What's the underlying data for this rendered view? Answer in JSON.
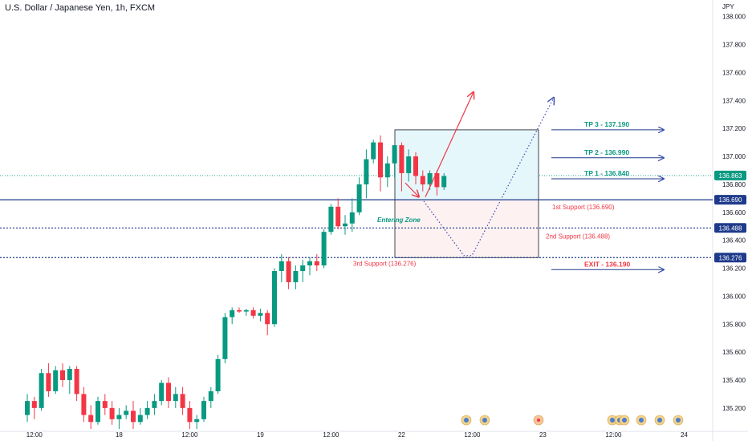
{
  "header": {
    "title": "U.S. Dollar / Japanese Yen, 1h, FXCM"
  },
  "colors": {
    "up": "#089981",
    "down": "#f23645",
    "support_line": "#1e3a8a",
    "tp_text": "#089981",
    "support_text": "#f23645",
    "arrow_blue": "#1e3a8a",
    "arrow_red": "#f23645",
    "dotted_path": "#3b4bb0",
    "zone_top_fill": "#e6f7fb",
    "zone_bottom_fill": "#fdf1f1",
    "axis_text": "#131722"
  },
  "chart_data": {
    "type": "candlestick",
    "symbol": "USDJPY",
    "interval": "1h",
    "y_axis": {
      "unit": "JPY",
      "min": 135.05,
      "max": 138.05,
      "ticks": [
        "138.000",
        "137.800",
        "137.600",
        "137.400",
        "137.200",
        "137.000",
        "136.800",
        "136.600",
        "136.400",
        "136.200",
        "136.000",
        "135.800",
        "135.600",
        "135.400",
        "135.200"
      ]
    },
    "x_axis": {
      "ticks": [
        {
          "label": "12:00",
          "index": 1
        },
        {
          "label": "18",
          "index": 13
        },
        {
          "label": "12:00",
          "index": 23
        },
        {
          "label": "19",
          "index": 33
        },
        {
          "label": "12:00",
          "index": 43
        },
        {
          "label": "22",
          "index": 53
        },
        {
          "label": "12:00",
          "index": 63
        },
        {
          "label": "23",
          "index": 73
        },
        {
          "label": "12:00",
          "index": 83
        },
        {
          "label": "24",
          "index": 93
        }
      ]
    },
    "candles": [
      [
        135.15,
        135.3,
        135.1,
        135.25
      ],
      [
        135.25,
        135.28,
        135.12,
        135.2
      ],
      [
        135.2,
        135.48,
        135.18,
        135.45
      ],
      [
        135.45,
        135.52,
        135.28,
        135.32
      ],
      [
        135.32,
        135.5,
        135.3,
        135.47
      ],
      [
        135.47,
        135.52,
        135.35,
        135.4
      ],
      [
        135.4,
        135.5,
        135.3,
        135.48
      ],
      [
        135.48,
        135.5,
        135.25,
        135.3
      ],
      [
        135.3,
        135.35,
        135.1,
        135.15
      ],
      [
        135.15,
        135.22,
        135.05,
        135.1
      ],
      [
        135.1,
        135.28,
        135.08,
        135.25
      ],
      [
        135.25,
        135.3,
        135.15,
        135.2
      ],
      [
        135.2,
        135.25,
        135.08,
        135.12
      ],
      [
        135.12,
        135.2,
        135.05,
        135.15
      ],
      [
        135.15,
        135.22,
        135.12,
        135.18
      ],
      [
        135.18,
        135.25,
        135.05,
        135.1
      ],
      [
        135.1,
        135.2,
        135.08,
        135.15
      ],
      [
        135.15,
        135.25,
        135.12,
        135.2
      ],
      [
        135.2,
        135.3,
        135.15,
        135.25
      ],
      [
        135.25,
        135.4,
        135.22,
        135.38
      ],
      [
        135.38,
        135.42,
        135.2,
        135.25
      ],
      [
        135.25,
        135.35,
        135.2,
        135.3
      ],
      [
        135.3,
        135.35,
        135.15,
        135.2
      ],
      [
        135.2,
        135.25,
        135.05,
        135.1
      ],
      [
        135.1,
        135.15,
        135.05,
        135.12
      ],
      [
        135.12,
        135.28,
        135.1,
        135.25
      ],
      [
        135.25,
        135.35,
        135.2,
        135.32
      ],
      [
        135.32,
        135.58,
        135.3,
        135.55
      ],
      [
        135.55,
        135.88,
        135.52,
        135.85
      ],
      [
        135.85,
        135.92,
        135.8,
        135.9
      ],
      [
        135.9,
        135.92,
        135.88,
        135.89
      ],
      [
        135.89,
        135.91,
        135.86,
        135.9
      ],
      [
        135.9,
        135.92,
        135.84,
        135.86
      ],
      [
        135.86,
        135.91,
        135.82,
        135.88
      ],
      [
        135.88,
        135.9,
        135.72,
        135.8
      ],
      [
        135.8,
        136.2,
        135.78,
        136.18
      ],
      [
        136.18,
        136.3,
        136.1,
        136.25
      ],
      [
        136.25,
        136.28,
        136.05,
        136.1
      ],
      [
        136.1,
        136.22,
        136.05,
        136.18
      ],
      [
        136.18,
        136.26,
        136.1,
        136.22
      ],
      [
        136.22,
        136.28,
        136.15,
        136.25
      ],
      [
        136.25,
        136.3,
        136.18,
        136.22
      ],
      [
        136.22,
        136.48,
        136.2,
        136.46
      ],
      [
        136.46,
        136.66,
        136.44,
        136.64
      ],
      [
        136.64,
        136.7,
        136.48,
        136.5
      ],
      [
        136.5,
        136.58,
        136.44,
        136.52
      ],
      [
        136.52,
        136.7,
        136.46,
        136.6
      ],
      [
        136.6,
        136.85,
        136.58,
        136.8
      ],
      [
        136.8,
        137.05,
        136.7,
        136.98
      ],
      [
        136.98,
        137.12,
        136.95,
        137.1
      ],
      [
        137.1,
        137.15,
        136.75,
        136.85
      ],
      [
        136.85,
        137.0,
        136.78,
        136.95
      ],
      [
        136.95,
        137.08,
        136.85,
        137.08
      ],
      [
        137.08,
        137.1,
        136.75,
        136.88
      ],
      [
        136.88,
        137.05,
        136.82,
        137.0
      ],
      [
        137.0,
        137.03,
        136.8,
        136.86
      ],
      [
        136.86,
        136.9,
        136.75,
        136.8
      ],
      [
        136.8,
        136.9,
        136.76,
        136.88
      ],
      [
        136.88,
        136.9,
        136.72,
        136.78
      ],
      [
        136.78,
        136.88,
        136.76,
        136.86
      ]
    ],
    "levels": [
      {
        "name": "TP 3 - 137.190",
        "value": 137.19,
        "kind": "tp"
      },
      {
        "name": "TP 2 - 136.990",
        "value": 136.99,
        "kind": "tp"
      },
      {
        "name": "TP 1 - 136.840",
        "value": 136.84,
        "kind": "tp"
      },
      {
        "name": "1st Support (136.690)",
        "value": 136.69,
        "kind": "support"
      },
      {
        "name": "2nd Support (136.488)",
        "value": 136.488,
        "kind": "support"
      },
      {
        "name": "3rd Support (136.276)",
        "value": 136.276,
        "kind": "support"
      },
      {
        "name": "EXIT - 136.190",
        "value": 136.19,
        "kind": "exit"
      }
    ],
    "price_labels": [
      {
        "text": "136.863",
        "value": 136.863,
        "bg": "#089981"
      },
      {
        "text": "136.690",
        "value": 136.69,
        "bg": "#1e3a8a"
      },
      {
        "text": "136.488",
        "value": 136.488,
        "bg": "#1e3a8a"
      },
      {
        "text": "136.276",
        "value": 136.276,
        "bg": "#1e3a8a"
      }
    ],
    "annotations": {
      "entering_zone": "Entering Zone"
    },
    "current_price": 136.863
  }
}
